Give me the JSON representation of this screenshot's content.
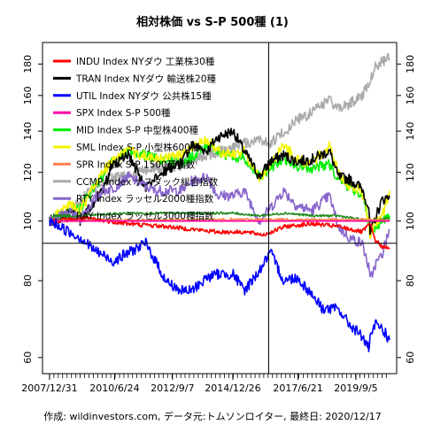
{
  "chart_data": {
    "type": "line",
    "title": "相対株価 vs S-P 500種 (1)",
    "xlabel": "",
    "ylabel": "",
    "x_ticks": [
      "2007/12/31",
      "2010/6/24",
      "2012/9/7",
      "2014/12/26",
      "2017/6/21",
      "2019/9/5"
    ],
    "y_ticks": [
      60,
      80,
      100,
      120,
      140,
      160,
      180
    ],
    "ylim": [
      58,
      190
    ],
    "log_scale_y": true,
    "grid": false,
    "legend_position": "top-left",
    "reference_lines": {
      "horizontal": 92,
      "vertical": "2016/5/9"
    },
    "caption": "作成: wildinvestors.com, データ元:トムソンロイター, 最終日: 2020/12/17",
    "series": [
      {
        "name": "INDU Index NYダウ 工業株30種",
        "color": "#ff0000",
        "width": 1.6,
        "x": [
          "2008/1/1",
          "2009/6/1",
          "2011/1/1",
          "2012/6/1",
          "2013/6/1",
          "2014/6/1",
          "2015/6/1",
          "2016/3/1",
          "2017/1/1",
          "2018/1/1",
          "2019/1/1",
          "2019/12/1",
          "2020/3/20",
          "2020/6/1",
          "2020/9/1",
          "2020/12/17"
        ],
        "values": [
          100,
          101,
          99,
          98,
          97,
          96,
          96,
          95,
          98,
          99,
          98,
          96,
          99,
          93,
          91,
          90
        ]
      },
      {
        "name": "TRAN Index NYダウ 輸送株20種",
        "color": "#000000",
        "width": 1.6,
        "x": [
          "2008/1/1",
          "2008/11/1",
          "2009/3/1",
          "2010/1/1",
          "2010/6/1",
          "2011/1/1",
          "2011/9/1",
          "2012/6/1",
          "2013/1/1",
          "2013/6/1",
          "2014/1/1",
          "2014/6/1",
          "2015/1/1",
          "2015/6/1",
          "2016/1/1",
          "2016/6/1",
          "2016/12/1",
          "2017/6/1",
          "2018/1/1",
          "2018/9/1",
          "2019/1/1",
          "2019/6/1",
          "2019/12/1",
          "2020/3/1",
          "2020/3/20",
          "2020/6/1",
          "2020/9/1",
          "2020/12/17"
        ],
        "values": [
          100,
          103,
          100,
          112,
          123,
          128,
          113,
          121,
          124,
          133,
          130,
          137,
          140,
          130,
          118,
          125,
          128,
          125,
          126,
          130,
          118,
          117,
          113,
          105,
          95,
          101,
          108,
          110
        ]
      },
      {
        "name": "UTIL Index NYダウ 公共株15種",
        "color": "#0000ff",
        "width": 1.6,
        "x": [
          "2008/1/1",
          "2008/10/1",
          "2009/3/1",
          "2009/9/1",
          "2010/6/1",
          "2011/9/1",
          "2012/6/1",
          "2013/1/1",
          "2013/6/1",
          "2014/1/1",
          "2014/6/1",
          "2015/1/1",
          "2015/6/1",
          "2016/1/1",
          "2016/6/1",
          "2016/12/1",
          "2017/6/1",
          "2018/1/1",
          "2018/6/1",
          "2019/1/1",
          "2019/6/1",
          "2019/12/1",
          "2020/3/1",
          "2020/3/20",
          "2020/6/1",
          "2020/9/1",
          "2020/12/17"
        ],
        "values": [
          100,
          96,
          94,
          90,
          86,
          92,
          80,
          77,
          77,
          81,
          82,
          82,
          77,
          83,
          89,
          80,
          81,
          76,
          72,
          72,
          68,
          65,
          62,
          64,
          68,
          67,
          64
        ]
      },
      {
        "name": "SPX Index S-P 500種",
        "color": "#ff00aa",
        "width": 1.6,
        "x": [
          "2008/1/1",
          "2020/12/17"
        ],
        "values": [
          100,
          100
        ]
      },
      {
        "name": "MID Index S-P 中型株400種",
        "color": "#00ee00",
        "width": 1.6,
        "x": [
          "2008/1/1",
          "2008/10/1",
          "2009/3/1",
          "2010/1/1",
          "2010/6/1",
          "2011/1/1",
          "2012/1/1",
          "2013/1/1",
          "2013/6/1",
          "2014/1/1",
          "2014/6/1",
          "2015/1/1",
          "2015/6/1",
          "2016/1/1",
          "2016/6/1",
          "2016/12/1",
          "2017/6/1",
          "2018/1/1",
          "2018/9/1",
          "2019/1/1",
          "2019/6/1",
          "2019/12/1",
          "2020/3/1",
          "2020/3/20",
          "2020/6/1",
          "2020/9/1",
          "2020/12/17"
        ],
        "values": [
          100,
          104,
          105,
          118,
          125,
          130,
          127,
          124,
          127,
          133,
          130,
          127,
          127,
          118,
          122,
          126,
          123,
          122,
          124,
          116,
          114,
          110,
          100,
          95,
          98,
          100,
          102
        ]
      },
      {
        "name": "SML Index S-P 小型株600種",
        "color": "#f5f500",
        "width": 1.6,
        "x": [
          "2008/1/1",
          "2008/10/1",
          "2009/3/1",
          "2010/1/1",
          "2010/6/1",
          "2011/1/1",
          "2012/1/1",
          "2013/1/1",
          "2013/6/1",
          "2014/1/1",
          "2014/6/1",
          "2015/1/1",
          "2015/6/1",
          "2016/1/1",
          "2016/6/1",
          "2016/12/1",
          "2017/6/1",
          "2018/1/1",
          "2018/9/1",
          "2019/1/1",
          "2019/6/1",
          "2019/12/1",
          "2020/3/1",
          "2020/3/20",
          "2020/6/1",
          "2020/9/1",
          "2020/12/17"
        ],
        "values": [
          100,
          106,
          104,
          120,
          125,
          130,
          126,
          128,
          131,
          136,
          130,
          128,
          130,
          117,
          124,
          133,
          126,
          124,
          132,
          120,
          114,
          112,
          100,
          93,
          99,
          101,
          112
        ]
      },
      {
        "name": "SPR Index S-P 1500種指数",
        "color": "#ff7f50",
        "width": 1.6,
        "x": [
          "2008/1/1",
          "2012/1/1",
          "2016/1/1",
          "2020/3/20",
          "2020/12/17"
        ],
        "values": [
          100,
          100.4,
          100.6,
          100.5,
          100.4
        ]
      },
      {
        "name": "CCMP Index ナスダック総合指数",
        "color": "#aaaaaa",
        "width": 1.6,
        "x": [
          "2008/1/1",
          "2008/10/1",
          "2009/3/1",
          "2010/1/1",
          "2011/1/1",
          "2012/1/1",
          "2013/1/1",
          "2014/1/1",
          "2015/1/1",
          "2016/1/1",
          "2016/6/1",
          "2017/1/1",
          "2017/6/1",
          "2018/1/1",
          "2018/9/1",
          "2019/1/1",
          "2019/6/1",
          "2019/12/1",
          "2020/3/20",
          "2020/6/1",
          "2020/9/1",
          "2020/12/17"
        ],
        "values": [
          100,
          103,
          108,
          116,
          119,
          122,
          123,
          128,
          132,
          136,
          134,
          140,
          146,
          150,
          158,
          152,
          155,
          160,
          170,
          178,
          182,
          184
        ]
      },
      {
        "name": "RTY Index ラッセル2000種指数",
        "color": "#8866cc",
        "width": 1.6,
        "x": [
          "2008/1/1",
          "2008/10/1",
          "2009/3/1",
          "2010/1/1",
          "2010/6/1",
          "2011/1/1",
          "2012/1/1",
          "2013/1/1",
          "2013/6/1",
          "2014/1/1",
          "2014/6/1",
          "2015/1/1",
          "2015/6/1",
          "2016/1/1",
          "2016/6/1",
          "2016/12/1",
          "2017/6/1",
          "2018/1/1",
          "2018/9/1",
          "2019/1/1",
          "2019/6/1",
          "2019/12/1",
          "2020/3/1",
          "2020/3/20",
          "2020/6/1",
          "2020/9/1",
          "2020/12/17"
        ],
        "values": [
          100,
          103,
          101,
          112,
          113,
          118,
          112,
          112,
          116,
          118,
          110,
          110,
          112,
          100,
          105,
          112,
          106,
          104,
          110,
          98,
          94,
          92,
          84,
          80,
          85,
          88,
          97
        ]
      },
      {
        "name": "RAY Index ラッセル3000種指数",
        "color": "#228b22",
        "width": 1.6,
        "x": [
          "2008/1/1",
          "2009/3/1",
          "2011/1/1",
          "2013/1/1",
          "2015/1/1",
          "2016/1/1",
          "2017/1/1",
          "2018/1/1",
          "2019/1/1",
          "2020/3/20",
          "2020/12/17"
        ],
        "values": [
          100,
          102,
          103,
          103,
          103,
          102,
          103,
          102,
          102,
          100,
          101
        ]
      }
    ]
  }
}
